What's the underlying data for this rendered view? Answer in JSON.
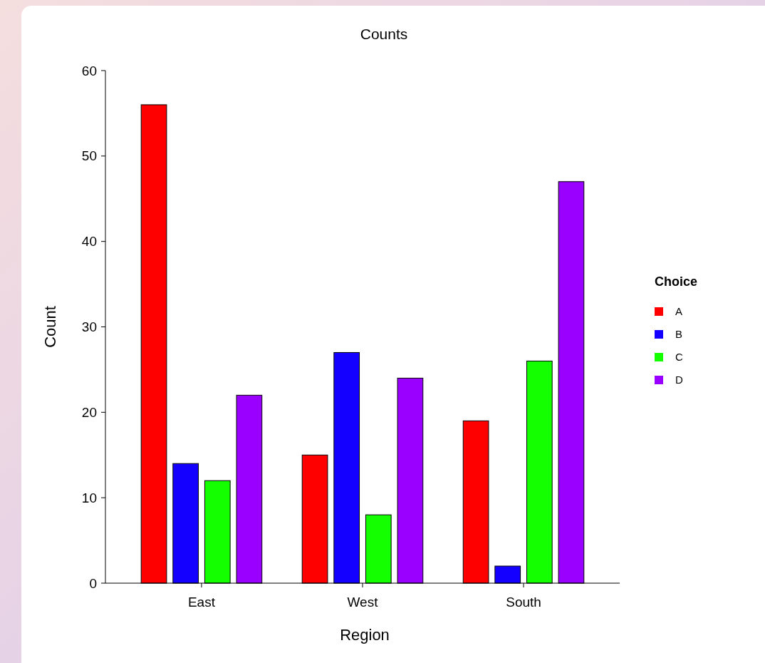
{
  "chart_data": {
    "type": "bar",
    "title": "Counts",
    "xlabel": "Region",
    "ylabel": "Count",
    "legend_title": "Choice",
    "categories": [
      "East",
      "West",
      "South"
    ],
    "series": [
      {
        "name": "A",
        "color": "#ff0000",
        "values": [
          56,
          15,
          19
        ]
      },
      {
        "name": "B",
        "color": "#1400ff",
        "values": [
          14,
          27,
          2
        ]
      },
      {
        "name": "C",
        "color": "#14ff00",
        "values": [
          12,
          8,
          26
        ]
      },
      {
        "name": "D",
        "color": "#9900ff",
        "values": [
          22,
          24,
          47
        ]
      }
    ],
    "ylim": [
      0,
      60
    ],
    "yticks": [
      0,
      10,
      20,
      30,
      40,
      50,
      60
    ],
    "grid": false,
    "legend": "right"
  }
}
